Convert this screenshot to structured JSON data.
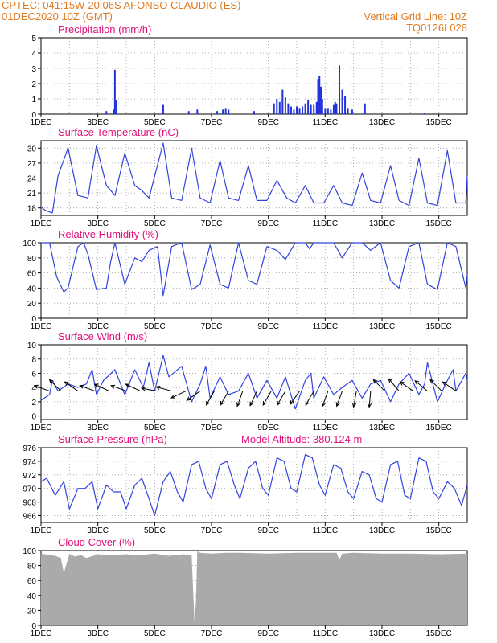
{
  "header": {
    "line1_left": "CPTEC:   041:15W-20:06S   AFONSO CLAUDIO (ES)",
    "line2_left": "01DEC2020 10Z (GMT)",
    "line2_right": "Vertical Grid Line: 10Z",
    "line3_right": "TQ0126L028",
    "model_altitude": "Model Altitude: 380.124 m"
  },
  "colors": {
    "header": "#e07a1f",
    "panel_title": "#e0107a",
    "line": "#3344dd",
    "precip": "#2233dd",
    "cloud": "#aaaaaa"
  },
  "x_axis": {
    "ticks": [
      "1DEC",
      "3DEC",
      "5DEC",
      "7DEC",
      "9DEC",
      "11DEC",
      "13DEC",
      "15DEC"
    ],
    "unit": "days from 01DEC2020 10Z",
    "range": [
      0,
      15
    ]
  },
  "chart_data": [
    {
      "id": "precip",
      "type": "bar",
      "title": "Precipitation (mm/h)",
      "ylim": [
        0,
        5
      ],
      "yticks": [
        0,
        1,
        2,
        3,
        4,
        5
      ],
      "x": [
        2.3,
        2.55,
        2.6,
        2.65,
        4.3,
        5.2,
        5.5,
        6.2,
        6.4,
        6.5,
        6.6,
        7.5,
        8.2,
        8.3,
        8.4,
        8.5,
        8.6,
        8.7,
        8.8,
        8.9,
        9.0,
        9.1,
        9.2,
        9.3,
        9.4,
        9.5,
        9.6,
        9.7,
        9.75,
        9.8,
        9.85,
        9.9,
        10.0,
        10.1,
        10.2,
        10.3,
        10.35,
        10.4,
        10.5,
        10.6,
        10.7,
        10.8,
        10.95,
        11.4,
        13.5
      ],
      "values": [
        0.2,
        0.3,
        2.9,
        0.9,
        0.6,
        0.2,
        0.3,
        0.2,
        0.3,
        0.4,
        0.3,
        0.2,
        0.7,
        1.0,
        0.8,
        1.6,
        1.1,
        0.7,
        0.5,
        0.3,
        0.5,
        0.4,
        0.5,
        0.7,
        0.9,
        0.6,
        0.6,
        0.8,
        2.3,
        2.5,
        1.8,
        1.0,
        0.4,
        0.4,
        0.3,
        0.6,
        0.8,
        0.7,
        3.2,
        1.6,
        1.2,
        0.4,
        0.3,
        0.7,
        0.1
      ]
    },
    {
      "id": "temp",
      "type": "line",
      "title": "Surface Temperature (nC)",
      "ylim": [
        16.5,
        31.5
      ],
      "yticks": [
        18,
        21,
        24,
        27,
        30
      ],
      "x": [
        0.0,
        0.15,
        0.4,
        0.6,
        0.95,
        1.3,
        1.65,
        1.95,
        2.3,
        2.6,
        2.95,
        3.3,
        3.55,
        3.8,
        4.3,
        4.6,
        4.95,
        5.3,
        5.6,
        5.95,
        6.3,
        6.6,
        6.95,
        7.3,
        7.6,
        7.95,
        8.3,
        8.65,
        8.95,
        9.3,
        9.6,
        9.95,
        10.3,
        10.6,
        10.95,
        11.3,
        11.6,
        11.95,
        12.3,
        12.6,
        12.95,
        13.3,
        13.6,
        13.95,
        14.3,
        14.6,
        14.95,
        15.0
      ],
      "values": [
        18.2,
        17.5,
        17.0,
        24.5,
        30.0,
        20.5,
        20.0,
        30.5,
        22.5,
        20.5,
        29.0,
        22.5,
        21.5,
        20.0,
        31.0,
        20.0,
        19.5,
        30.0,
        20.0,
        19.0,
        27.5,
        20.0,
        19.5,
        26.5,
        19.5,
        19.5,
        23.5,
        20.0,
        19.0,
        22.5,
        19.0,
        19.0,
        22.5,
        19.0,
        18.5,
        25.0,
        19.5,
        19.0,
        26.5,
        19.5,
        18.5,
        28.0,
        19.0,
        18.5,
        29.5,
        19.0,
        19.0,
        24.5
      ]
    },
    {
      "id": "rh",
      "type": "line",
      "title": "Relative Humidity (%)",
      "ylim": [
        0,
        100
      ],
      "yticks": [
        0,
        20,
        40,
        60,
        80,
        100
      ],
      "x": [
        0.0,
        0.3,
        0.55,
        0.8,
        0.95,
        1.3,
        1.5,
        1.65,
        1.95,
        2.3,
        2.45,
        2.6,
        2.95,
        3.3,
        3.55,
        3.8,
        4.1,
        4.3,
        4.6,
        4.95,
        5.3,
        5.6,
        5.95,
        6.3,
        6.6,
        6.95,
        7.3,
        7.6,
        7.95,
        8.3,
        8.6,
        8.95,
        9.3,
        9.45,
        9.6,
        9.95,
        10.3,
        10.6,
        10.95,
        11.3,
        11.6,
        11.95,
        12.3,
        12.6,
        12.95,
        13.3,
        13.6,
        13.95,
        14.3,
        14.6,
        14.95,
        15.0
      ],
      "values": [
        100,
        100,
        55,
        35,
        40,
        95,
        100,
        85,
        38,
        40,
        75,
        100,
        45,
        80,
        75,
        90,
        95,
        30,
        95,
        100,
        38,
        45,
        97,
        45,
        40,
        100,
        50,
        45,
        95,
        90,
        78,
        100,
        100,
        92,
        100,
        100,
        100,
        80,
        100,
        100,
        90,
        100,
        50,
        40,
        95,
        100,
        45,
        38,
        100,
        95,
        40,
        58
      ]
    },
    {
      "id": "wind",
      "type": "line",
      "title": "Surface Wind (m/s)",
      "ylim": [
        -0.5,
        10
      ],
      "yticks": [
        0,
        2,
        4,
        6,
        8,
        10
      ],
      "x": [
        0.0,
        0.3,
        0.4,
        0.6,
        0.95,
        1.3,
        1.6,
        1.8,
        1.95,
        2.2,
        2.6,
        2.95,
        3.3,
        3.6,
        3.8,
        4.0,
        4.3,
        4.5,
        4.95,
        5.3,
        5.6,
        5.8,
        5.95,
        6.3,
        6.6,
        6.95,
        7.3,
        7.6,
        7.95,
        8.3,
        8.6,
        8.95,
        9.3,
        9.5,
        9.6,
        9.95,
        10.3,
        10.6,
        10.95,
        11.3,
        11.6,
        11.95,
        12.3,
        12.6,
        12.95,
        13.3,
        13.5,
        13.6,
        13.95,
        14.3,
        14.5,
        14.6,
        14.95,
        15.0
      ],
      "values": [
        2.2,
        3.0,
        5.0,
        3.5,
        4.5,
        4.0,
        4.5,
        6.5,
        3.0,
        5.0,
        6.5,
        3.0,
        6.5,
        4.0,
        7.5,
        3.5,
        8.5,
        5.5,
        7.0,
        2.0,
        4.5,
        7.0,
        2.5,
        5.5,
        3.0,
        3.5,
        6.0,
        2.5,
        5.0,
        2.5,
        5.5,
        1.0,
        5.0,
        6.0,
        2.5,
        5.5,
        3.0,
        4.0,
        5.0,
        2.5,
        4.5,
        5.0,
        2.0,
        4.5,
        6.0,
        3.0,
        4.5,
        7.5,
        2.0,
        5.0,
        6.5,
        3.5,
        6.0,
        5.0
      ],
      "arrows_x": [
        0.3,
        0.7,
        1.3,
        1.9,
        2.4,
        3.0,
        3.5,
        4.1,
        4.6,
        5.1,
        5.6,
        6.1,
        6.6,
        7.1,
        7.6,
        8.1,
        8.6,
        9.1,
        9.6,
        10.1,
        10.6,
        11.1,
        11.6,
        12.1,
        12.6,
        13.1,
        13.6,
        14.1,
        14.6
      ],
      "arrows_dir": [
        200,
        225,
        215,
        200,
        205,
        200,
        205,
        190,
        195,
        155,
        145,
        120,
        120,
        110,
        115,
        120,
        120,
        125,
        120,
        110,
        110,
        100,
        95,
        225,
        230,
        215,
        220,
        225,
        215
      ]
    },
    {
      "id": "pres",
      "type": "line",
      "title": "Surface Pressure (hPa)",
      "ylim": [
        965,
        976
      ],
      "yticks": [
        966,
        968,
        970,
        972,
        974,
        976
      ],
      "x": [
        0.0,
        0.2,
        0.5,
        0.8,
        1.0,
        1.3,
        1.55,
        1.8,
        2.0,
        2.3,
        2.55,
        2.8,
        3.0,
        3.3,
        3.55,
        3.8,
        4.0,
        4.3,
        4.55,
        4.8,
        5.0,
        5.3,
        5.55,
        5.8,
        6.0,
        6.3,
        6.55,
        6.8,
        7.0,
        7.3,
        7.55,
        7.8,
        8.0,
        8.3,
        8.55,
        8.8,
        9.0,
        9.3,
        9.55,
        9.8,
        10.0,
        10.3,
        10.55,
        10.8,
        11.0,
        11.3,
        11.55,
        11.8,
        12.0,
        12.3,
        12.55,
        12.8,
        13.0,
        13.3,
        13.55,
        13.8,
        14.0,
        14.3,
        14.55,
        14.8,
        15.0
      ],
      "values": [
        971.0,
        971.5,
        969.0,
        971.0,
        967.0,
        970.0,
        970.0,
        971.0,
        967.0,
        970.5,
        969.5,
        969.5,
        967.0,
        970.5,
        971.5,
        968.5,
        966.0,
        971.0,
        972.5,
        969.5,
        968.0,
        973.5,
        974.0,
        970.0,
        968.5,
        973.5,
        974.0,
        970.5,
        968.5,
        973.0,
        974.0,
        970.0,
        969.0,
        974.5,
        974.0,
        970.0,
        969.5,
        975.0,
        974.5,
        970.5,
        969.0,
        973.5,
        973.0,
        969.5,
        968.5,
        972.5,
        972.0,
        968.5,
        968.0,
        973.5,
        974.0,
        969.0,
        968.5,
        974.5,
        974.0,
        969.5,
        968.5,
        971.0,
        970.0,
        967.5,
        970.5
      ]
    },
    {
      "id": "cloud",
      "type": "area",
      "title": "Cloud Cover (%)",
      "ylim": [
        0,
        100
      ],
      "yticks": [
        0,
        20,
        40,
        60,
        80,
        100
      ],
      "x": [
        0.0,
        0.3,
        0.5,
        0.7,
        0.8,
        1.0,
        1.2,
        1.4,
        1.6,
        2.0,
        2.5,
        3.0,
        3.5,
        4.0,
        4.5,
        5.0,
        5.3,
        5.4,
        5.45,
        5.5,
        5.6,
        6.0,
        6.5,
        7.0,
        8.0,
        9.0,
        10.0,
        10.4,
        10.5,
        10.6,
        11.0,
        12.0,
        13.0,
        14.0,
        15.0
      ],
      "values": [
        96,
        94,
        93,
        90,
        70,
        95,
        92,
        94,
        90,
        95,
        94,
        95,
        94,
        96,
        93,
        95,
        94,
        5,
        30,
        99,
        97,
        96,
        97,
        97,
        96,
        97,
        97,
        97,
        88,
        96,
        97,
        96,
        96,
        95,
        96
      ]
    }
  ]
}
